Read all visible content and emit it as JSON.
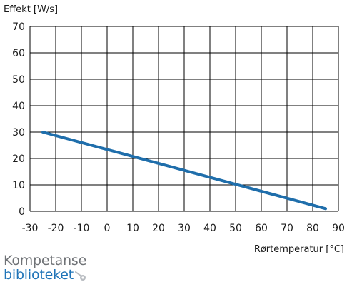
{
  "chart_data": {
    "type": "line",
    "ylabel": "Effekt [W/s]",
    "xlabel": "Rørtemperatur [°C]",
    "xlim": [
      -30,
      90
    ],
    "ylim": [
      0,
      70
    ],
    "xticks": [
      -30,
      -20,
      -10,
      0,
      10,
      20,
      30,
      40,
      50,
      60,
      70,
      80,
      90
    ],
    "yticks": [
      0,
      10,
      20,
      30,
      40,
      50,
      60,
      70
    ],
    "grid": true,
    "series": [
      {
        "color": "#1f6eab",
        "x": [
          -25,
          85
        ],
        "y": [
          30,
          1
        ]
      }
    ]
  },
  "logo": {
    "line1": "Kompetanse",
    "line2": "biblioteket"
  }
}
